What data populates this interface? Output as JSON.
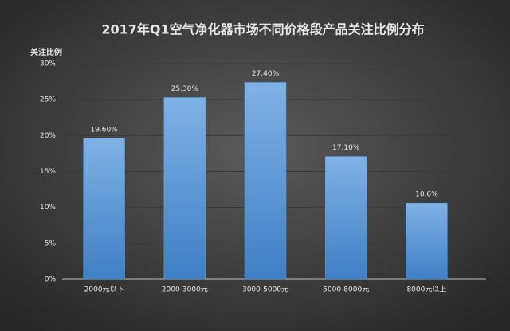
{
  "chart_data": {
    "type": "bar",
    "title": "2017年Q1空气净化器市场不同价格段产品关注比例分布",
    "y_label": "关注比例",
    "categories": [
      "2000元以下",
      "2000-3000元",
      "3000-5000元",
      "5000-8000元",
      "8000元以上"
    ],
    "values": [
      19.6,
      25.3,
      27.4,
      17.1,
      10.6
    ],
    "value_labels": [
      "19.60%",
      "25.30%",
      "27.40%",
      "17.10%",
      "10.6%"
    ],
    "color": "#5b9bd5",
    "ylim": [
      0,
      30
    ],
    "yticks": [
      {
        "value": 0,
        "label": "0%"
      },
      {
        "value": 5,
        "label": "5%"
      },
      {
        "value": 10,
        "label": "10%"
      },
      {
        "value": 15,
        "label": "15%"
      },
      {
        "value": 20,
        "label": "20%"
      },
      {
        "value": 25,
        "label": "25%"
      },
      {
        "value": 30,
        "label": "30%"
      }
    ],
    "grid": true
  }
}
